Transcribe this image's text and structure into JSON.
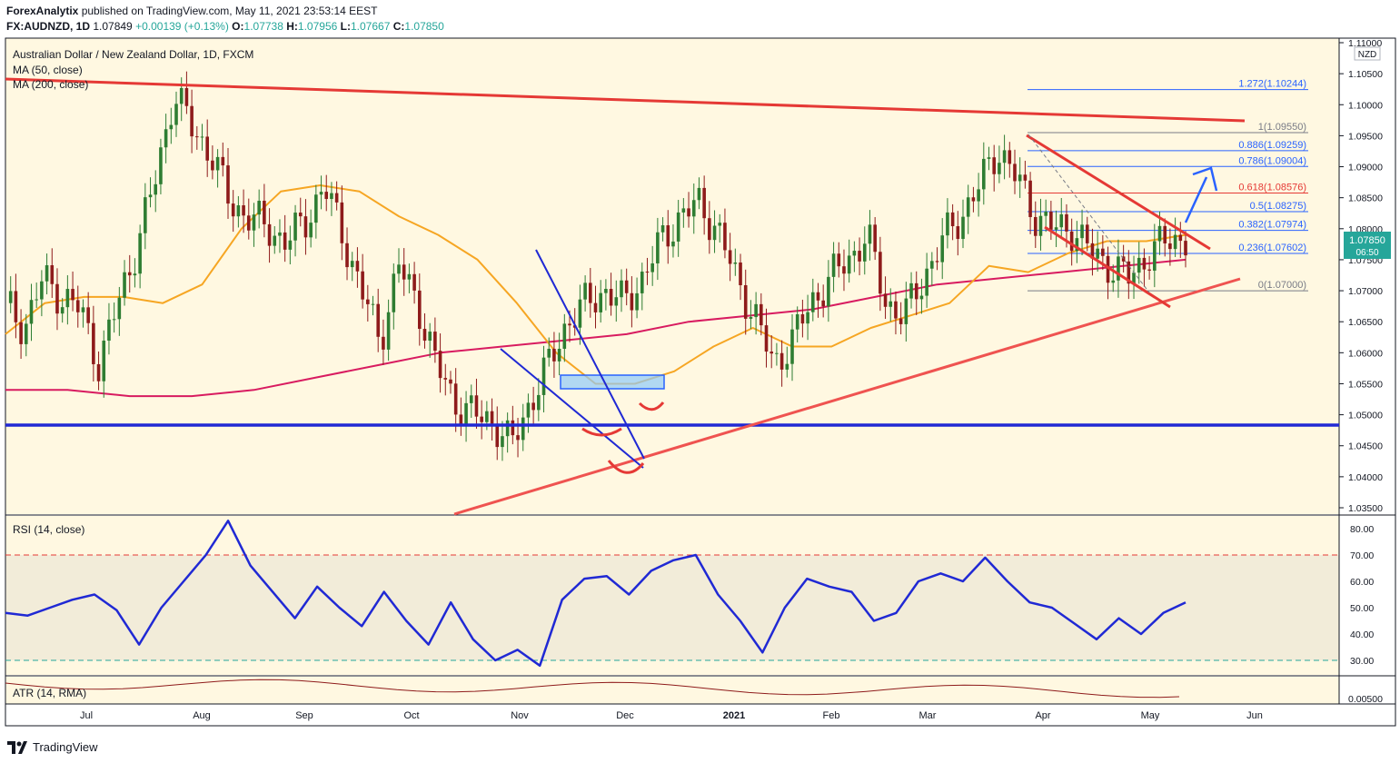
{
  "header": {
    "publisher": "ForexAnalytix",
    "published_text": "published on TradingView.com, May 11, 2021 23:53:14 EEST",
    "symbol": "FX:AUDNZD, 1D",
    "last": "1.07849",
    "change": "+0.00139 (+0.13%)",
    "o_label": "O:",
    "o_value": "1.07738",
    "h_label": "H:",
    "h_value": "1.07956",
    "l_label": "L:",
    "l_value": "1.07667",
    "c_label": "C:",
    "c_value": "1.07850"
  },
  "legend": {
    "title": "Australian Dollar / New Zealand Dollar, 1D, FXCM",
    "ma50": "MA (50, close)",
    "ma200": "MA (200, close)",
    "rsi": "RSI (14, close)",
    "atr": "ATR (14, RMA)"
  },
  "axis": {
    "currency": "NZD",
    "price_ticks": [
      "1.11000",
      "1.10500",
      "1.10000",
      "1.09500",
      "1.09000",
      "1.08500",
      "1.08000",
      "1.07500",
      "1.07000",
      "1.06500",
      "1.06000",
      "1.05500",
      "1.05000",
      "1.04500",
      "1.04000",
      "1.03500"
    ],
    "price_values": [
      1.11,
      1.105,
      1.1,
      1.095,
      1.09,
      1.085,
      1.08,
      1.075,
      1.07,
      1.065,
      1.06,
      1.055,
      1.05,
      1.045,
      1.04,
      1.035
    ],
    "rsi_ticks": [
      "80.00",
      "70.00",
      "60.00",
      "50.00",
      "40.00",
      "30.00"
    ],
    "rsi_values": [
      80,
      70,
      60,
      50,
      40,
      30
    ],
    "atr_tick": "0.00500",
    "current_price": "1.07850",
    "countdown": "06:50",
    "months": [
      "Jul",
      "Aug",
      "Sep",
      "Oct",
      "Nov",
      "Dec",
      "2021",
      "Feb",
      "Mar",
      "Apr",
      "May",
      "Jun"
    ]
  },
  "fib": [
    {
      "label": "1.272(1.10244)",
      "value": 1.10244,
      "color": "#2962ff"
    },
    {
      "label": "1(1.09550)",
      "value": 1.0955,
      "color": "#787b86"
    },
    {
      "label": "0.886(1.09259)",
      "value": 1.09259,
      "color": "#2962ff"
    },
    {
      "label": "0.786(1.09004)",
      "value": 1.09004,
      "color": "#2962ff"
    },
    {
      "label": "0.618(1.08576)",
      "value": 1.08576,
      "color": "#e53935"
    },
    {
      "label": "0.5(1.08275)",
      "value": 1.08275,
      "color": "#2962ff"
    },
    {
      "label": "0.382(1.07974)",
      "value": 1.07974,
      "color": "#2962ff"
    },
    {
      "label": "0.236(1.07602)",
      "value": 1.07602,
      "color": "#2962ff"
    },
    {
      "label": "0(1.07000)",
      "value": 1.07,
      "color": "#787b86"
    }
  ],
  "chart_data": {
    "type": "line",
    "symbol": "FX:AUDNZD",
    "interval": "1D",
    "x_months": [
      "Jul",
      "Aug",
      "Sep",
      "Oct",
      "Nov",
      "Dec",
      "2021",
      "Feb",
      "Mar",
      "Apr",
      "May",
      "Jun"
    ],
    "price_approx": [
      1.068,
      1.064,
      1.072,
      1.069,
      1.067,
      1.058,
      1.068,
      1.077,
      1.088,
      1.102,
      1.096,
      1.092,
      1.084,
      1.082,
      1.08,
      1.078,
      1.081,
      1.087,
      1.079,
      1.07,
      1.062,
      1.074,
      1.068,
      1.058,
      1.052,
      1.05,
      1.049,
      1.045,
      1.052,
      1.058,
      1.065,
      1.068,
      1.07,
      1.068,
      1.072,
      1.078,
      1.082,
      1.084,
      1.08,
      1.072,
      1.066,
      1.058,
      1.062,
      1.068,
      1.072,
      1.075,
      1.079,
      1.068,
      1.066,
      1.072,
      1.078,
      1.082,
      1.087,
      1.093,
      1.088,
      1.082,
      1.08,
      1.08,
      1.076,
      1.074,
      1.072,
      1.076,
      1.078,
      1.0785
    ],
    "ma50_approx": [
      1.063,
      1.068,
      1.069,
      1.069,
      1.068,
      1.071,
      1.08,
      1.086,
      1.087,
      1.086,
      1.082,
      1.079,
      1.075,
      1.068,
      1.06,
      1.055,
      1.055,
      1.057,
      1.061,
      1.064,
      1.061,
      1.061,
      1.064,
      1.066,
      1.068,
      1.074,
      1.073,
      1.076,
      1.078,
      1.078,
      1.079
    ],
    "ma200_approx": [
      1.054,
      1.054,
      1.053,
      1.053,
      1.054,
      1.056,
      1.058,
      1.06,
      1.061,
      1.062,
      1.063,
      1.065,
      1.066,
      1.067,
      1.069,
      1.071,
      1.072,
      1.073,
      1.074,
      1.075
    ],
    "rsi_approx": [
      48,
      47,
      50,
      53,
      55,
      49,
      36,
      50,
      60,
      70,
      83,
      66,
      56,
      46,
      58,
      50,
      43,
      56,
      45,
      36,
      52,
      38,
      30,
      34,
      28,
      53,
      61,
      62,
      55,
      64,
      68,
      70,
      55,
      45,
      33,
      50,
      61,
      58,
      56,
      45,
      48,
      60,
      63,
      60,
      69,
      60,
      52,
      50,
      44,
      38,
      46,
      40,
      48,
      52
    ],
    "atr_tick": 0.005
  }
}
